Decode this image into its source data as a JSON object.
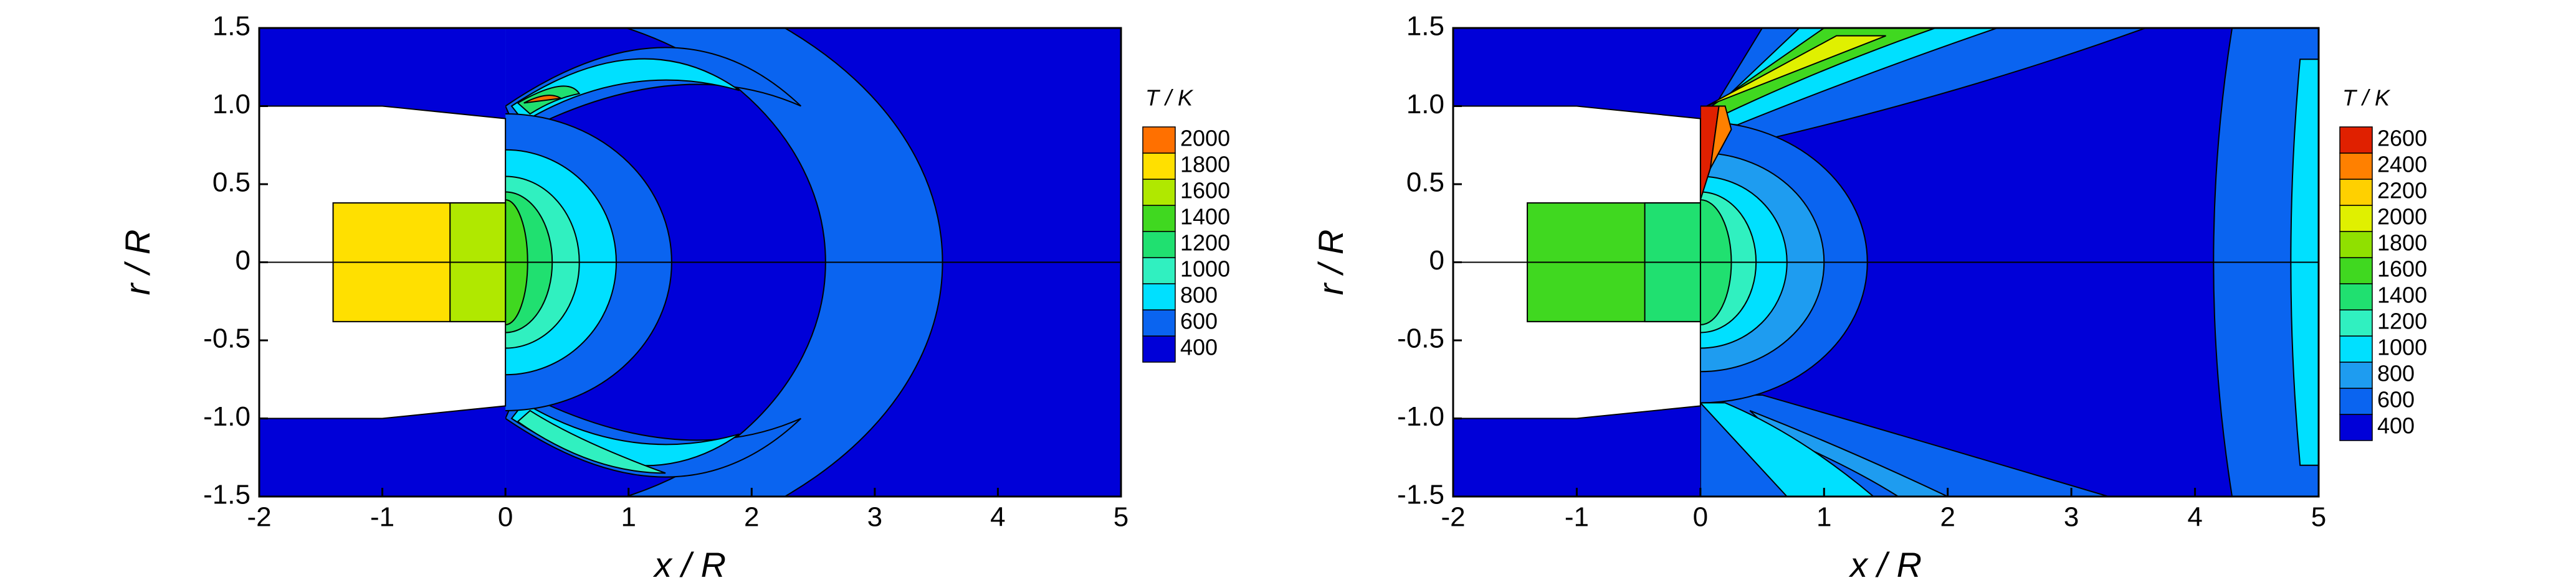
{
  "chart_data": [
    {
      "type": "contour",
      "xlabel": "x / R",
      "ylabel": "r / R",
      "xlim": [
        -2,
        5
      ],
      "xticks": [
        -2,
        -1,
        0,
        1,
        2,
        3,
        4,
        5
      ],
      "ylim": [
        -1.5,
        1.5
      ],
      "yticks": [
        -1.5,
        {
          "value": -1,
          "label": "-1.0"
        },
        -0.5,
        0,
        0.5,
        {
          "value": 1,
          "label": "1.0"
        },
        1.5
      ],
      "colorbar": {
        "title": "T / K",
        "levels": [
          400,
          600,
          800,
          1000,
          1200,
          1400,
          1600,
          1800,
          2000
        ],
        "colors": [
          "#0000d8",
          "#0a64f0",
          "#00e0ff",
          "#30f0c0",
          "#20e070",
          "#40d820",
          "#b0e800",
          "#ffe000",
          "#ff7000"
        ]
      }
    },
    {
      "type": "contour",
      "xlabel": "x / R",
      "ylabel": "r / R",
      "xlim": [
        -2,
        5
      ],
      "xticks": [
        -2,
        -1,
        0,
        1,
        2,
        3,
        4,
        5
      ],
      "ylim": [
        -1.5,
        1.5
      ],
      "yticks": [
        -1.5,
        {
          "value": -1,
          "label": "-1.0"
        },
        -0.5,
        0,
        0.5,
        {
          "value": 1,
          "label": "1.0"
        },
        1.5
      ],
      "colorbar": {
        "title": "T / K",
        "levels": [
          400,
          600,
          800,
          1000,
          1200,
          1400,
          1600,
          1800,
          2000,
          2200,
          2400,
          2600
        ],
        "colors": [
          "#0000d8",
          "#0a64f0",
          "#1e9cf0",
          "#00e0ff",
          "#30f0c0",
          "#20e070",
          "#40d820",
          "#90e000",
          "#e0f000",
          "#ffd000",
          "#ff8000",
          "#e02000"
        ]
      }
    }
  ]
}
